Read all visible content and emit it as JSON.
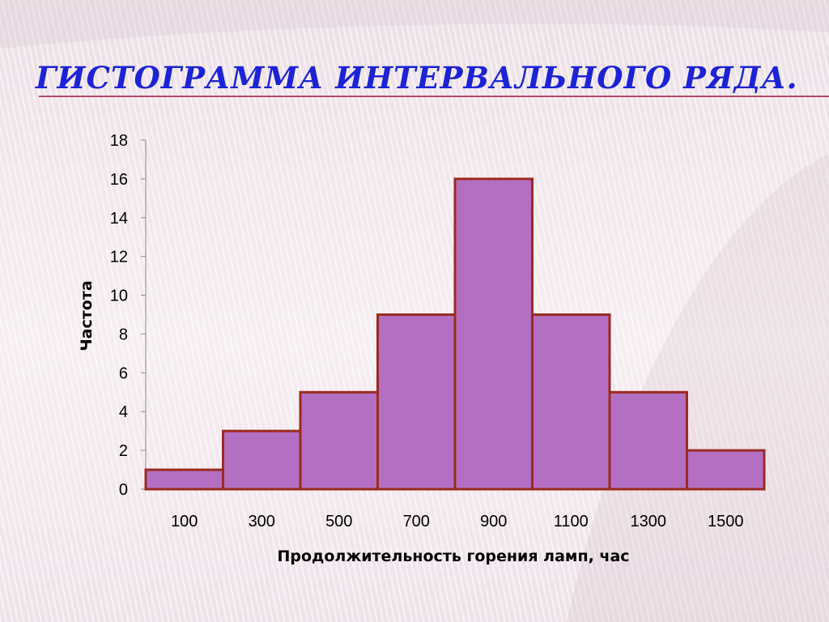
{
  "slide": {
    "title": "ГИСТОГРАММА ИНТЕРВАЛЬНОГО РЯДА."
  },
  "colors": {
    "title": "#1c23d6",
    "bar_fill": "#b36fc2",
    "bar_stroke": "#9b2a1f"
  },
  "chart_data": {
    "type": "bar",
    "categories": [
      "100",
      "300",
      "500",
      "700",
      "900",
      "1100",
      "1300",
      "1500"
    ],
    "values": [
      1,
      3,
      5,
      9,
      16,
      9,
      5,
      2
    ],
    "title": "",
    "xlabel": "Продолжительность горения ламп, час",
    "ylabel": "Частота",
    "ylim": [
      0,
      18
    ],
    "yticks": [
      0,
      2,
      4,
      6,
      8,
      10,
      12,
      14,
      16,
      18
    ],
    "bar_gap": 0,
    "grid": false,
    "legend": "none"
  }
}
